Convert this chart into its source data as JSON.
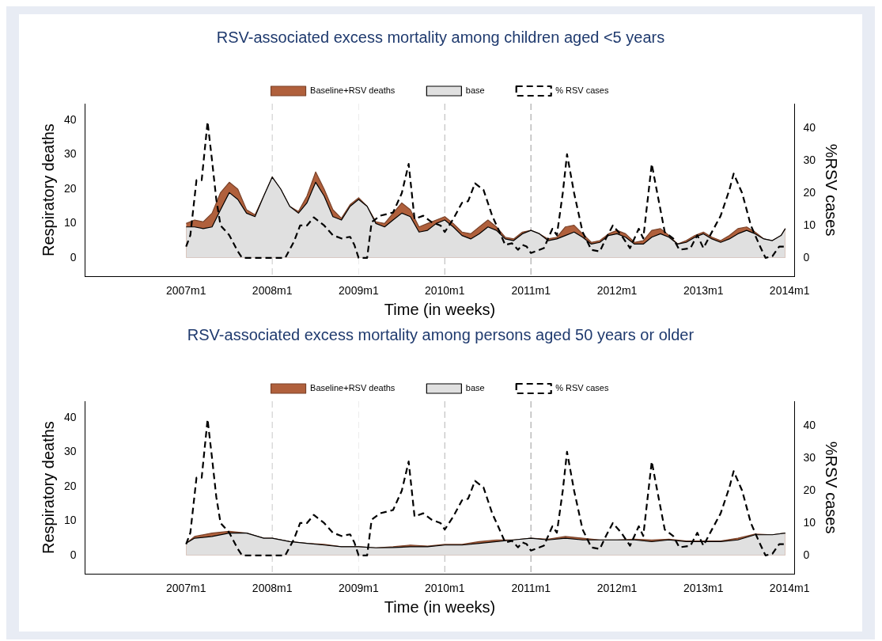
{
  "chart_data": [
    {
      "type": "area",
      "title": "RSV-associated excess mortality among children aged <5 years",
      "xlabel": "Time (in weeks)",
      "ylabel": "Respiratory deaths",
      "y2label": "%RSV cases",
      "legend": "top",
      "grid": false,
      "marker": "none",
      "xlim": [
        "2005-10-30",
        "2014-01-22"
      ],
      "xticks": [
        {
          "value": "2007-01-01",
          "label": "2007m1"
        },
        {
          "value": "2008-01-01",
          "label": "2008m1"
        },
        {
          "value": "2009-01-01",
          "label": "2009m1"
        },
        {
          "value": "2010-01-01",
          "label": "2010m1"
        },
        {
          "value": "2011-01-01",
          "label": "2011m1"
        },
        {
          "value": "2012-01-01",
          "label": "2012m1"
        },
        {
          "value": "2013-01-01",
          "label": "2013m1"
        },
        {
          "value": "2014-01-01",
          "label": "2014m1"
        }
      ],
      "ylim": [
        -5.4,
        44.9
      ],
      "yticks": [
        0,
        10,
        20,
        30,
        40
      ],
      "y2lim": [
        -5.7,
        47.6
      ],
      "y2ticks": [
        0,
        10,
        20,
        30,
        40
      ],
      "ref_lines": [
        {
          "axis": "x",
          "value": "2008-01-01",
          "color": "#c8c8c8",
          "line_style": "dashed"
        },
        {
          "axis": "x",
          "value": "2009-01-01",
          "color": "#ececec",
          "line_style": "dashed"
        },
        {
          "axis": "x",
          "value": "2010-01-01",
          "color": "#b4b4b4",
          "line_style": "dashed"
        },
        {
          "axis": "x",
          "value": "2011-01-01",
          "color": "#9a9a9a",
          "line_style": "dashed"
        }
      ],
      "series": [
        {
          "name": "Baseline+RSV deaths",
          "type": "area",
          "color": "#b0603c",
          "x": [
            "2007-01-01",
            "2007-02-06",
            "2007-03-15",
            "2007-04-21",
            "2007-05-27",
            "2007-07-03",
            "2007-08-08",
            "2007-09-14",
            "2007-10-20",
            "2007-11-26",
            "2008-01-01",
            "2008-02-06",
            "2008-03-15",
            "2008-04-21",
            "2008-05-27",
            "2008-07-03",
            "2008-08-08",
            "2008-09-14",
            "2008-10-20",
            "2008-11-26",
            "2009-01-01",
            "2009-02-06",
            "2009-03-15",
            "2009-04-21",
            "2009-05-27",
            "2009-07-03",
            "2009-08-08",
            "2009-09-14",
            "2009-10-20",
            "2009-11-26",
            "2010-01-01",
            "2010-02-06",
            "2010-03-15",
            "2010-04-21",
            "2010-05-27",
            "2010-07-03",
            "2010-08-08",
            "2010-09-14",
            "2010-10-20",
            "2010-11-26",
            "2011-01-01",
            "2011-02-06",
            "2011-03-15",
            "2011-04-21",
            "2011-05-27",
            "2011-07-03",
            "2011-08-08",
            "2011-09-14",
            "2011-10-20",
            "2011-11-26",
            "2012-01-01",
            "2012-02-06",
            "2012-03-15",
            "2012-04-21",
            "2012-05-27",
            "2012-07-03",
            "2012-08-08",
            "2012-09-14",
            "2012-10-20",
            "2012-11-26",
            "2013-01-01",
            "2013-02-06",
            "2013-03-15",
            "2013-04-21",
            "2013-05-27",
            "2013-07-03",
            "2013-08-08",
            "2013-09-14",
            "2013-10-20",
            "2013-11-26",
            "2013-12-14"
          ],
          "values": [
            10,
            11,
            10.5,
            13,
            19,
            22,
            20,
            14,
            12.5,
            18,
            23.5,
            20,
            15,
            13.5,
            18,
            25,
            20,
            14,
            11.5,
            15.5,
            17.5,
            15,
            10.5,
            10,
            13,
            16,
            14,
            9,
            10,
            11,
            12,
            10,
            7.5,
            7,
            9,
            11,
            9,
            6,
            5.5,
            7.5,
            8,
            7,
            5.5,
            6,
            9,
            9.5,
            7,
            4.5,
            5,
            7,
            8,
            7,
            4.5,
            5,
            8,
            8.5,
            6.5,
            4,
            5,
            6.5,
            7.5,
            6,
            5,
            6.5,
            8.5,
            9,
            7.5,
            5.5,
            5,
            6.5,
            8.5
          ]
        },
        {
          "name": "base",
          "type": "area",
          "color": "#e0e0e0",
          "x": [
            "2007-01-01",
            "2007-02-06",
            "2007-03-15",
            "2007-04-21",
            "2007-05-27",
            "2007-07-03",
            "2007-08-08",
            "2007-09-14",
            "2007-10-20",
            "2007-11-26",
            "2008-01-01",
            "2008-02-06",
            "2008-03-15",
            "2008-04-21",
            "2008-05-27",
            "2008-07-03",
            "2008-08-08",
            "2008-09-14",
            "2008-10-20",
            "2008-11-26",
            "2009-01-01",
            "2009-02-06",
            "2009-03-15",
            "2009-04-21",
            "2009-05-27",
            "2009-07-03",
            "2009-08-08",
            "2009-09-14",
            "2009-10-20",
            "2009-11-26",
            "2010-01-01",
            "2010-02-06",
            "2010-03-15",
            "2010-04-21",
            "2010-05-27",
            "2010-07-03",
            "2010-08-08",
            "2010-09-14",
            "2010-10-20",
            "2010-11-26",
            "2011-01-01",
            "2011-02-06",
            "2011-03-15",
            "2011-04-21",
            "2011-05-27",
            "2011-07-03",
            "2011-08-08",
            "2011-09-14",
            "2011-10-20",
            "2011-11-26",
            "2012-01-01",
            "2012-02-06",
            "2012-03-15",
            "2012-04-21",
            "2012-05-27",
            "2012-07-03",
            "2012-08-08",
            "2012-09-14",
            "2012-10-20",
            "2012-11-26",
            "2013-01-01",
            "2013-02-06",
            "2013-03-15",
            "2013-04-21",
            "2013-05-27",
            "2013-07-03",
            "2013-08-08",
            "2013-09-14",
            "2013-10-20",
            "2013-11-26",
            "2013-12-14"
          ],
          "values": [
            9,
            9,
            8.5,
            9,
            14,
            19,
            17,
            13,
            12,
            18,
            23.5,
            20,
            15,
            13,
            16,
            22,
            18,
            12,
            11,
            15,
            17,
            15,
            10,
            9,
            11,
            13,
            12,
            7.5,
            8,
            10,
            11,
            9,
            6.5,
            5.5,
            7,
            9,
            8,
            5.5,
            5,
            7,
            8,
            7,
            5,
            5.5,
            6.5,
            7.5,
            6,
            4,
            4.5,
            6.5,
            7,
            6,
            4,
            4,
            6,
            7,
            6,
            4,
            4.5,
            6,
            7,
            5.5,
            4.5,
            5.5,
            7,
            8,
            7,
            5.5,
            5,
            6.5,
            8.5
          ]
        },
        {
          "name": "% RSV cases",
          "type": "line",
          "axis": "y2",
          "color": "#000000",
          "line_style": "dashed",
          "x": [
            "2007-01-01",
            "2007-01-19",
            "2007-02-14",
            "2007-03-08",
            "2007-04-02",
            "2007-04-21",
            "2007-05-09",
            "2007-05-27",
            "2007-07-03",
            "2007-08-08",
            "2007-08-26",
            "2007-10-20",
            "2008-01-01",
            "2008-02-25",
            "2008-04-02",
            "2008-04-28",
            "2008-05-27",
            "2008-06-25",
            "2008-08-08",
            "2008-09-14",
            "2008-10-20",
            "2008-11-26",
            "2008-12-14",
            "2009-01-01",
            "2009-02-06",
            "2009-02-25",
            "2009-04-02",
            "2009-05-27",
            "2009-07-03",
            "2009-08-01",
            "2009-08-26",
            "2009-10-02",
            "2009-11-07",
            "2009-12-14",
            "2010-01-01",
            "2010-02-06",
            "2010-03-15",
            "2010-04-10",
            "2010-05-09",
            "2010-06-14",
            "2010-07-21",
            "2010-08-15",
            "2010-09-14",
            "2010-10-13",
            "2010-11-07",
            "2010-11-26",
            "2010-12-14",
            "2011-01-01",
            "2011-02-25",
            "2011-04-02",
            "2011-04-21",
            "2011-05-16",
            "2011-06-03",
            "2011-07-03",
            "2011-08-08",
            "2011-09-14",
            "2011-10-20",
            "2011-11-15",
            "2011-12-14",
            "2012-01-19",
            "2012-02-25",
            "2012-04-02",
            "2012-04-21",
            "2012-05-27",
            "2012-06-14",
            "2012-07-21",
            "2012-08-26",
            "2012-09-21",
            "2012-11-07",
            "2012-12-06",
            "2013-01-01",
            "2013-02-06",
            "2013-03-15",
            "2013-04-21",
            "2013-05-09",
            "2013-06-14",
            "2013-07-21",
            "2013-08-26",
            "2013-09-21",
            "2013-10-20",
            "2013-11-18",
            "2013-12-14"
          ],
          "values": [
            3.5,
            7,
            24,
            24,
            42,
            30,
            18,
            10,
            7,
            2,
            0,
            0,
            0,
            0,
            5,
            10,
            10,
            12.5,
            10,
            7,
            6,
            6.5,
            4,
            0,
            0,
            11,
            13,
            14,
            20,
            29,
            12,
            13,
            11,
            10,
            8,
            12,
            17,
            17.5,
            23,
            21,
            13,
            9,
            4,
            4.5,
            2.5,
            4,
            3.5,
            1.5,
            3,
            9,
            7,
            20,
            32,
            20,
            8,
            2.5,
            2,
            6,
            10,
            7,
            3,
            9,
            6,
            29,
            22,
            8,
            6,
            2.5,
            3,
            7,
            3,
            8,
            13,
            21,
            26,
            20,
            10,
            4,
            0,
            0.5,
            3.5,
            3.5
          ]
        }
      ]
    },
    {
      "type": "area",
      "title": "RSV-associated excess mortality among persons aged 50 years or older",
      "xlabel": "Time (in weeks)",
      "ylabel": "Respiratory deaths",
      "y2label": "%RSV cases",
      "legend": "top",
      "grid": false,
      "marker": "none",
      "xlim": [
        "2005-10-30",
        "2014-01-22"
      ],
      "xticks": [
        {
          "value": "2007-01-01",
          "label": "2007m1"
        },
        {
          "value": "2008-01-01",
          "label": "2008m1"
        },
        {
          "value": "2009-01-01",
          "label": "2009m1"
        },
        {
          "value": "2010-01-01",
          "label": "2010m1"
        },
        {
          "value": "2011-01-01",
          "label": "2011m1"
        },
        {
          "value": "2012-01-01",
          "label": "2012m1"
        },
        {
          "value": "2013-01-01",
          "label": "2013m1"
        },
        {
          "value": "2014-01-01",
          "label": "2014m1"
        }
      ],
      "ylim": [
        -5.4,
        44.9
      ],
      "yticks": [
        0,
        10,
        20,
        30,
        40
      ],
      "y2lim": [
        -5.7,
        47.6
      ],
      "y2ticks": [
        0,
        10,
        20,
        30,
        40
      ],
      "ref_lines": [
        {
          "axis": "x",
          "value": "2008-01-01",
          "color": "#c8c8c8",
          "line_style": "dashed"
        },
        {
          "axis": "x",
          "value": "2009-01-01",
          "color": "#ececec",
          "line_style": "dashed"
        },
        {
          "axis": "x",
          "value": "2010-01-01",
          "color": "#b4b4b4",
          "line_style": "dashed"
        },
        {
          "axis": "x",
          "value": "2011-01-01",
          "color": "#9a9a9a",
          "line_style": "dashed"
        }
      ],
      "series": [
        {
          "name": "Baseline+RSV deaths",
          "type": "area",
          "color": "#b0603c",
          "x": [
            "2007-01-01",
            "2007-02-06",
            "2007-04-21",
            "2007-07-03",
            "2007-09-14",
            "2007-11-26",
            "2008-01-01",
            "2008-03-15",
            "2008-05-27",
            "2008-08-08",
            "2008-10-20",
            "2009-01-01",
            "2009-03-15",
            "2009-05-27",
            "2009-08-08",
            "2009-10-20",
            "2010-01-01",
            "2010-03-15",
            "2010-05-27",
            "2010-08-08",
            "2010-10-20",
            "2011-01-01",
            "2011-03-15",
            "2011-05-27",
            "2011-08-08",
            "2011-10-20",
            "2012-01-01",
            "2012-03-15",
            "2012-05-27",
            "2012-08-08",
            "2012-10-20",
            "2013-01-01",
            "2013-03-15",
            "2013-05-27",
            "2013-08-08",
            "2013-10-20",
            "2013-12-14"
          ],
          "values": [
            3.5,
            5.5,
            6.5,
            7,
            6.5,
            5,
            5,
            4,
            3.5,
            3.2,
            2.5,
            2.5,
            2.2,
            2.5,
            3,
            2.7,
            3.2,
            3.2,
            4,
            4.5,
            4.5,
            5,
            4.7,
            5.5,
            5,
            4.5,
            4.5,
            4.7,
            4.5,
            4.7,
            4.2,
            4.2,
            4.2,
            5,
            6.2,
            6,
            6.5
          ]
        },
        {
          "name": "base",
          "type": "area",
          "color": "#e0e0e0",
          "x": [
            "2007-01-01",
            "2007-02-06",
            "2007-04-21",
            "2007-07-03",
            "2007-09-14",
            "2007-11-26",
            "2008-01-01",
            "2008-03-15",
            "2008-05-27",
            "2008-08-08",
            "2008-10-20",
            "2009-01-01",
            "2009-03-15",
            "2009-05-27",
            "2009-08-08",
            "2009-10-20",
            "2010-01-01",
            "2010-03-15",
            "2010-05-27",
            "2010-08-08",
            "2010-10-20",
            "2011-01-01",
            "2011-03-15",
            "2011-05-27",
            "2011-08-08",
            "2011-10-20",
            "2012-01-01",
            "2012-03-15",
            "2012-05-27",
            "2012-08-08",
            "2012-10-20",
            "2013-01-01",
            "2013-03-15",
            "2013-05-27",
            "2013-08-08",
            "2013-10-20",
            "2013-12-14"
          ],
          "values": [
            3.5,
            5,
            5.5,
            6.5,
            6.5,
            5,
            5,
            4,
            3.5,
            3,
            2.5,
            2.5,
            2.2,
            2.3,
            2.5,
            2.5,
            3,
            3,
            3.5,
            4,
            4.5,
            5,
            4.5,
            5,
            4.5,
            4.5,
            4.5,
            4.5,
            4,
            4.5,
            4,
            4,
            4,
            4.5,
            6,
            6,
            6.5
          ]
        },
        {
          "name": "% RSV cases",
          "type": "line",
          "axis": "y2",
          "color": "#000000",
          "line_style": "dashed",
          "x": [
            "2007-01-01",
            "2007-01-19",
            "2007-02-14",
            "2007-03-08",
            "2007-04-02",
            "2007-04-21",
            "2007-05-09",
            "2007-05-27",
            "2007-07-03",
            "2007-08-08",
            "2007-08-26",
            "2007-10-20",
            "2008-01-01",
            "2008-02-25",
            "2008-04-02",
            "2008-04-28",
            "2008-05-27",
            "2008-06-25",
            "2008-08-08",
            "2008-09-14",
            "2008-10-20",
            "2008-11-26",
            "2008-12-14",
            "2009-01-01",
            "2009-02-06",
            "2009-02-25",
            "2009-04-02",
            "2009-05-27",
            "2009-07-03",
            "2009-08-01",
            "2009-08-26",
            "2009-10-02",
            "2009-11-07",
            "2009-12-14",
            "2010-01-01",
            "2010-02-06",
            "2010-03-15",
            "2010-04-10",
            "2010-05-09",
            "2010-06-14",
            "2010-07-21",
            "2010-08-15",
            "2010-09-14",
            "2010-10-13",
            "2010-11-07",
            "2010-11-26",
            "2010-12-14",
            "2011-01-01",
            "2011-02-25",
            "2011-04-02",
            "2011-04-21",
            "2011-05-16",
            "2011-06-03",
            "2011-07-03",
            "2011-08-08",
            "2011-09-14",
            "2011-10-20",
            "2011-11-15",
            "2011-12-14",
            "2012-01-19",
            "2012-02-25",
            "2012-04-02",
            "2012-04-21",
            "2012-05-27",
            "2012-06-14",
            "2012-07-21",
            "2012-08-26",
            "2012-09-21",
            "2012-11-07",
            "2012-12-06",
            "2013-01-01",
            "2013-02-06",
            "2013-03-15",
            "2013-04-21",
            "2013-05-09",
            "2013-06-14",
            "2013-07-21",
            "2013-08-26",
            "2013-09-21",
            "2013-10-20",
            "2013-11-18",
            "2013-12-14"
          ],
          "values": [
            3.5,
            7,
            24,
            24,
            42,
            30,
            18,
            10,
            7,
            2,
            0,
            0,
            0,
            0,
            5,
            10,
            10,
            12.5,
            10,
            7,
            6,
            6.5,
            4,
            0,
            0,
            11,
            13,
            14,
            20,
            29,
            12,
            13,
            11,
            10,
            8,
            12,
            17,
            17.5,
            23,
            21,
            13,
            9,
            4,
            4.5,
            2.5,
            4,
            3.5,
            1.5,
            3,
            9,
            7,
            20,
            32,
            20,
            8,
            2.5,
            2,
            6,
            10,
            7,
            3,
            9,
            6,
            29,
            22,
            8,
            6,
            2.5,
            3,
            7,
            3,
            8,
            13,
            21,
            26,
            20,
            10,
            4,
            0,
            0.5,
            3.5,
            3.5
          ]
        }
      ]
    }
  ]
}
